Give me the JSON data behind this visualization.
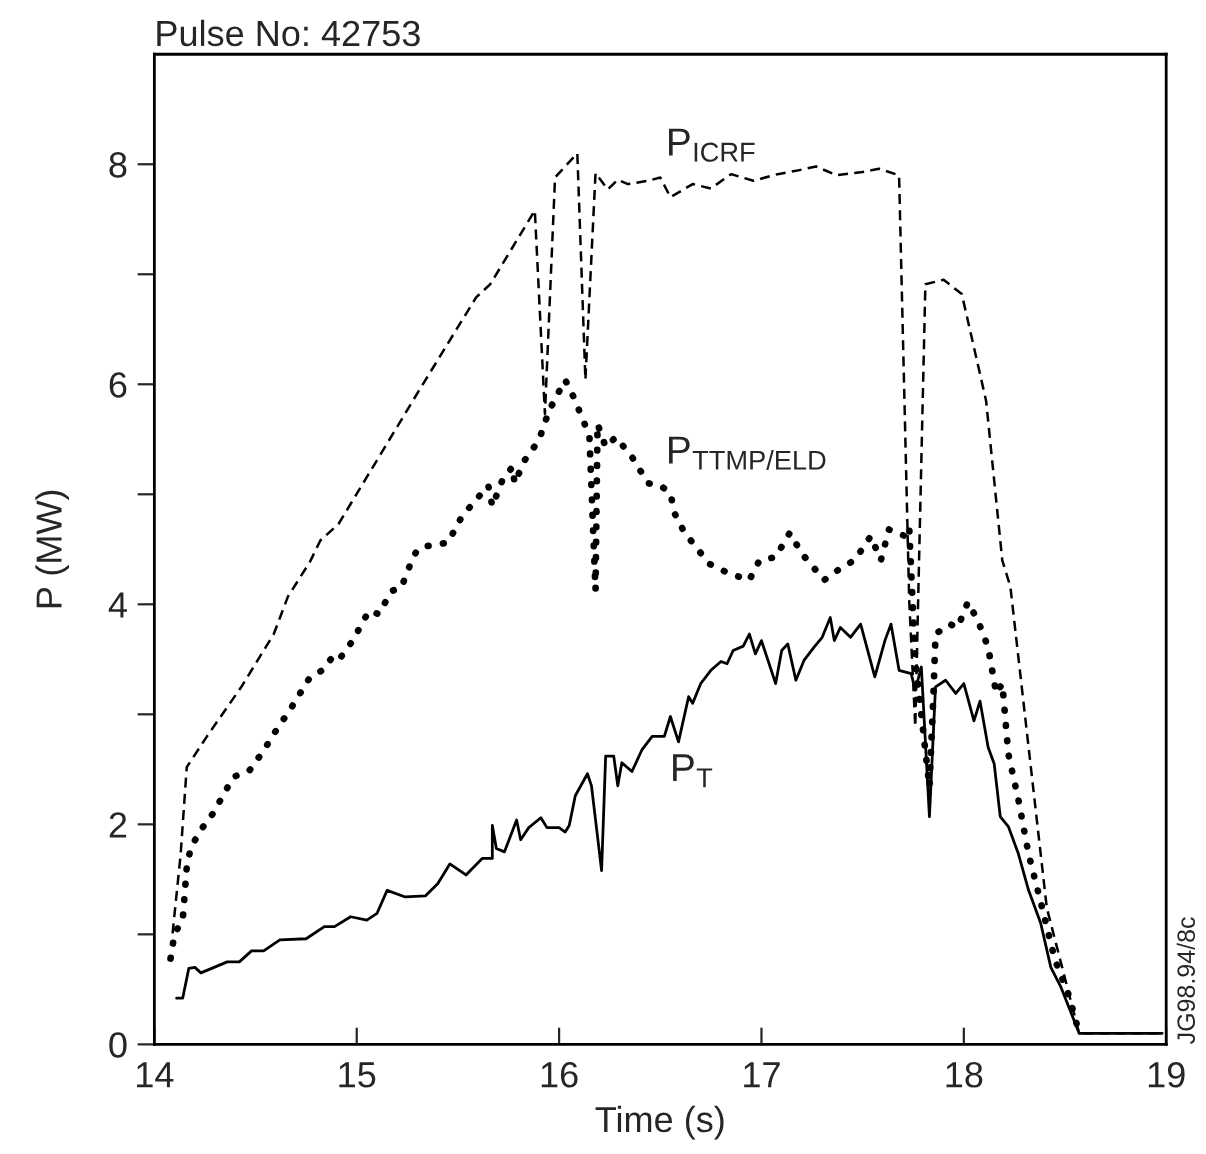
{
  "chart_data": {
    "type": "line",
    "title": "Pulse No: 42753",
    "xlabel": "Time (s)",
    "ylabel": "P (MW)",
    "xlim": [
      14,
      19
    ],
    "ylim": [
      0,
      9
    ],
    "xticks": [
      14,
      15,
      16,
      17,
      18,
      19
    ],
    "yticks": [
      0,
      {
        "value": 1,
        "label": null
      },
      2,
      {
        "value": 3,
        "label": null
      },
      4,
      {
        "value": 5,
        "label": null
      },
      6,
      {
        "value": 7,
        "label": null
      },
      8
    ],
    "grid": false,
    "marker": "none",
    "series": [
      {
        "name": "P$_{ICRF}$",
        "color": "#000000",
        "line_style": "dashed",
        "x": [
          14.09,
          14.13,
          14.16,
          14.26,
          14.43,
          14.59,
          14.66,
          14.77,
          14.82,
          14.91,
          15.32,
          15.59,
          15.66,
          15.88,
          15.93,
          15.98,
          16.09,
          16.13,
          16.18,
          16.24,
          16.29,
          16.34,
          16.44,
          16.5,
          16.55,
          16.66,
          16.75,
          16.85,
          16.96,
          17.08,
          17.17,
          17.27,
          17.37,
          17.5,
          17.58,
          17.68,
          17.73,
          17.76,
          17.81,
          17.9,
          17.99,
          18.11,
          18.19,
          18.23,
          18.41,
          18.57,
          18.98
        ],
        "values": [
          1.01,
          1.73,
          2.52,
          2.8,
          3.25,
          3.73,
          4.07,
          4.39,
          4.58,
          4.73,
          5.98,
          6.79,
          6.91,
          7.58,
          5.73,
          7.88,
          8.1,
          6.04,
          7.92,
          7.77,
          7.86,
          7.82,
          7.85,
          7.88,
          7.7,
          7.82,
          7.78,
          7.91,
          7.85,
          7.91,
          7.94,
          7.98,
          7.9,
          7.93,
          7.96,
          7.9,
          4.04,
          2.89,
          6.91,
          6.95,
          6.82,
          5.85,
          4.4,
          4.16,
          1.24,
          0.1,
          0.1
        ]
      },
      {
        "name": "P$_{TTMP/ELD}$",
        "color": "#000000",
        "line_style": "dotted",
        "x": [
          14.08,
          14.1,
          14.14,
          14.16,
          14.18,
          14.23,
          14.29,
          14.39,
          14.47,
          14.54,
          14.6,
          14.67,
          14.77,
          14.83,
          14.88,
          14.91,
          14.98,
          15.06,
          15.11,
          15.17,
          15.22,
          15.27,
          15.3,
          15.35,
          15.45,
          15.52,
          15.59,
          15.65,
          15.67,
          15.72,
          15.77,
          15.78,
          15.83,
          15.9,
          15.95,
          16.03,
          16.07,
          16.12,
          16.15,
          16.18,
          16.19,
          16.23,
          16.28,
          16.36,
          16.44,
          16.5,
          16.55,
          16.57,
          16.62,
          16.66,
          16.74,
          16.84,
          16.94,
          16.99,
          17.07,
          17.14,
          17.2,
          17.31,
          17.4,
          17.46,
          17.54,
          17.59,
          17.63,
          17.71,
          17.73,
          17.76,
          17.83,
          17.85,
          17.86,
          17.93,
          17.97,
          18.02,
          18.07,
          18.12,
          18.16,
          18.19,
          18.22,
          18.27,
          18.32,
          18.39,
          18.45,
          18.52,
          18.57
        ],
        "values": [
          0.78,
          1.01,
          1.13,
          1.61,
          1.79,
          1.95,
          2.1,
          2.43,
          2.49,
          2.67,
          2.85,
          3.04,
          3.34,
          3.4,
          3.52,
          3.49,
          3.67,
          3.94,
          3.91,
          4.12,
          4.15,
          4.39,
          4.5,
          4.53,
          4.56,
          4.8,
          4.95,
          5.08,
          4.89,
          5.13,
          5.25,
          5.1,
          5.31,
          5.49,
          5.76,
          6.04,
          5.89,
          5.67,
          5.52,
          4.13,
          5.64,
          5.43,
          5.52,
          5.34,
          5.1,
          5.08,
          5.01,
          4.83,
          4.65,
          4.56,
          4.37,
          4.28,
          4.22,
          4.4,
          4.43,
          4.65,
          4.46,
          4.22,
          4.34,
          4.4,
          4.62,
          4.4,
          4.68,
          4.62,
          4.7,
          3.49,
          2.34,
          3.19,
          3.73,
          3.82,
          3.79,
          4.02,
          3.85,
          3.61,
          3.19,
          3.28,
          2.64,
          2.22,
          1.73,
          1.22,
          0.77,
          0.44,
          0.1
        ]
      },
      {
        "name": "P$_{T}$",
        "color": "#000000",
        "line_style": "solid",
        "x": [
          14.11,
          14.14,
          14.17,
          14.2,
          14.23,
          14.36,
          14.42,
          14.48,
          14.54,
          14.62,
          14.75,
          14.84,
          14.89,
          14.97,
          15.05,
          15.1,
          15.15,
          15.24,
          15.34,
          15.4,
          15.46,
          15.54,
          15.62,
          15.67,
          15.67,
          15.69,
          15.73,
          15.79,
          15.81,
          15.85,
          15.91,
          15.94,
          16.0,
          16.03,
          16.05,
          16.08,
          16.14,
          16.16,
          16.21,
          16.23,
          16.27,
          16.29,
          16.31,
          16.36,
          16.41,
          16.46,
          16.52,
          16.55,
          16.59,
          16.64,
          16.66,
          16.7,
          16.75,
          16.8,
          16.83,
          16.86,
          16.91,
          16.94,
          16.97,
          17.0,
          17.07,
          17.1,
          17.13,
          17.17,
          17.21,
          17.26,
          17.3,
          17.34,
          17.36,
          17.39,
          17.44,
          17.49,
          17.56,
          17.61,
          17.64,
          17.68,
          17.74,
          17.76,
          17.79,
          17.83,
          17.86,
          17.91,
          17.96,
          18.0,
          18.05,
          18.08,
          18.12,
          18.15,
          18.18,
          18.22,
          18.27,
          18.32,
          18.38,
          18.43,
          18.48,
          18.57,
          18.98
        ],
        "values": [
          0.42,
          0.42,
          0.69,
          0.7,
          0.65,
          0.75,
          0.75,
          0.85,
          0.85,
          0.95,
          0.96,
          1.07,
          1.07,
          1.16,
          1.13,
          1.19,
          1.4,
          1.34,
          1.35,
          1.46,
          1.64,
          1.54,
          1.69,
          1.69,
          1.99,
          1.78,
          1.75,
          2.04,
          1.86,
          1.97,
          2.06,
          1.97,
          1.97,
          1.93,
          1.99,
          2.26,
          2.46,
          2.35,
          1.58,
          2.62,
          2.62,
          2.35,
          2.56,
          2.48,
          2.68,
          2.8,
          2.8,
          2.98,
          2.75,
          3.16,
          3.1,
          3.28,
          3.4,
          3.48,
          3.46,
          3.58,
          3.62,
          3.73,
          3.55,
          3.67,
          3.28,
          3.58,
          3.64,
          3.31,
          3.49,
          3.61,
          3.7,
          3.88,
          3.67,
          3.79,
          3.7,
          3.82,
          3.34,
          3.67,
          3.82,
          3.4,
          3.37,
          3.22,
          3.43,
          2.07,
          3.25,
          3.31,
          3.19,
          3.28,
          2.94,
          3.12,
          2.7,
          2.55,
          2.07,
          1.98,
          1.73,
          1.4,
          1.1,
          0.7,
          0.52,
          0.1,
          0.1
        ]
      }
    ],
    "annotations": [
      "JG98.94/8c"
    ]
  }
}
